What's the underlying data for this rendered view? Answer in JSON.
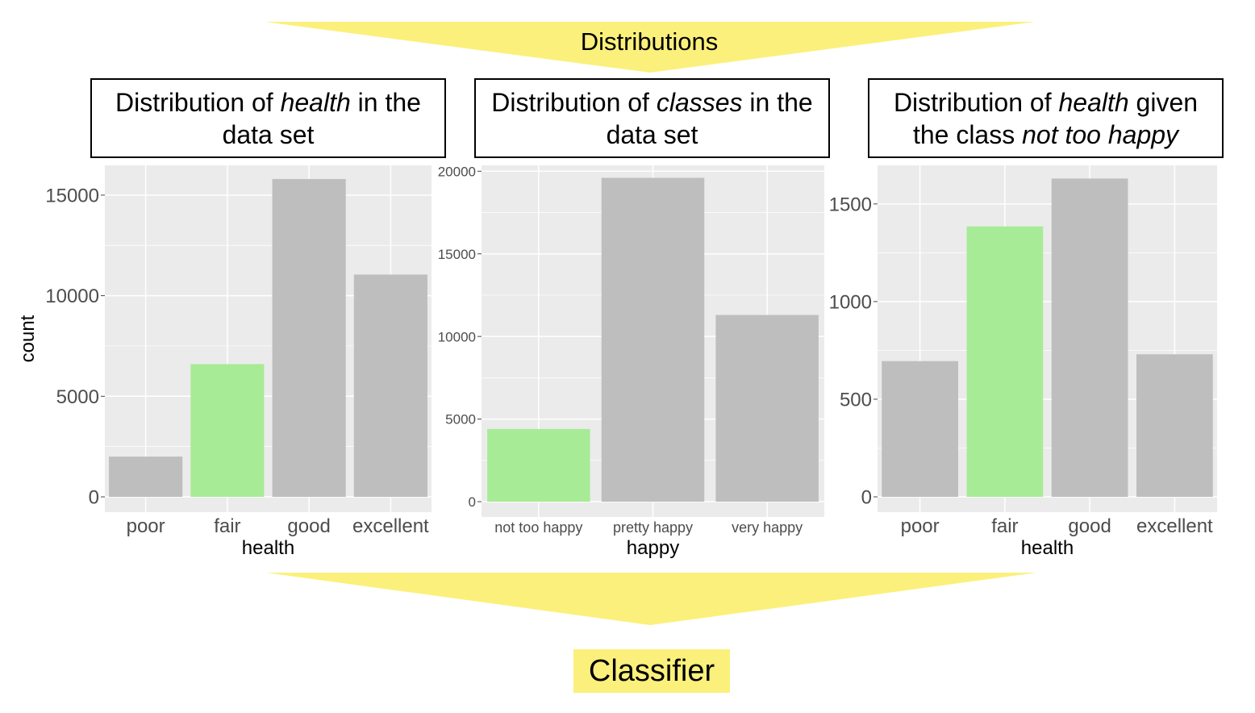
{
  "banner_top": {
    "label": "Distributions"
  },
  "banner_bottom": {
    "label": "Classifier"
  },
  "panels": [
    {
      "pre": "Distribution of ",
      "em": "health",
      "post": " in the data set"
    },
    {
      "pre": "Distribution of ",
      "em": "classes",
      "post": " in the data set"
    },
    {
      "pre": "Distribution of ",
      "em": "health",
      "mid": " given the class ",
      "em2": "not too happy"
    }
  ],
  "colors": {
    "highlight": "#a8eb96",
    "bar": "#bebebe",
    "panel_bg": "#ebebeb",
    "grid": "#ffffff",
    "banner": "#fbf07b"
  },
  "chart_data": [
    {
      "type": "bar",
      "categories": [
        "poor",
        "fair",
        "good",
        "excellent"
      ],
      "values": [
        2000,
        6600,
        15800,
        11050
      ],
      "highlight": [
        "fair"
      ],
      "xlabel": "health",
      "ylabel": "count",
      "yticks": [
        "0",
        "5000",
        "10000",
        "15000"
      ],
      "ylim": [
        0,
        16600
      ],
      "grid": true
    },
    {
      "type": "bar",
      "categories": [
        "not too happy",
        "pretty happy",
        "very happy"
      ],
      "values": [
        4400,
        19600,
        11300
      ],
      "highlight": [
        "not too happy"
      ],
      "xlabel": "happy",
      "ylabel": "",
      "yticks": [
        "0",
        "5000",
        "10000",
        "15000",
        "20000"
      ],
      "ylim": [
        0,
        20600
      ],
      "grid": true
    },
    {
      "type": "bar",
      "categories": [
        "poor",
        "fair",
        "good",
        "excellent"
      ],
      "values": [
        695,
        1385,
        1630,
        730
      ],
      "highlight": [
        "fair"
      ],
      "xlabel": "health",
      "ylabel": "",
      "yticks": [
        "0",
        "500",
        "1000",
        "1500"
      ],
      "ylim": [
        0,
        1710
      ],
      "grid": true
    }
  ]
}
